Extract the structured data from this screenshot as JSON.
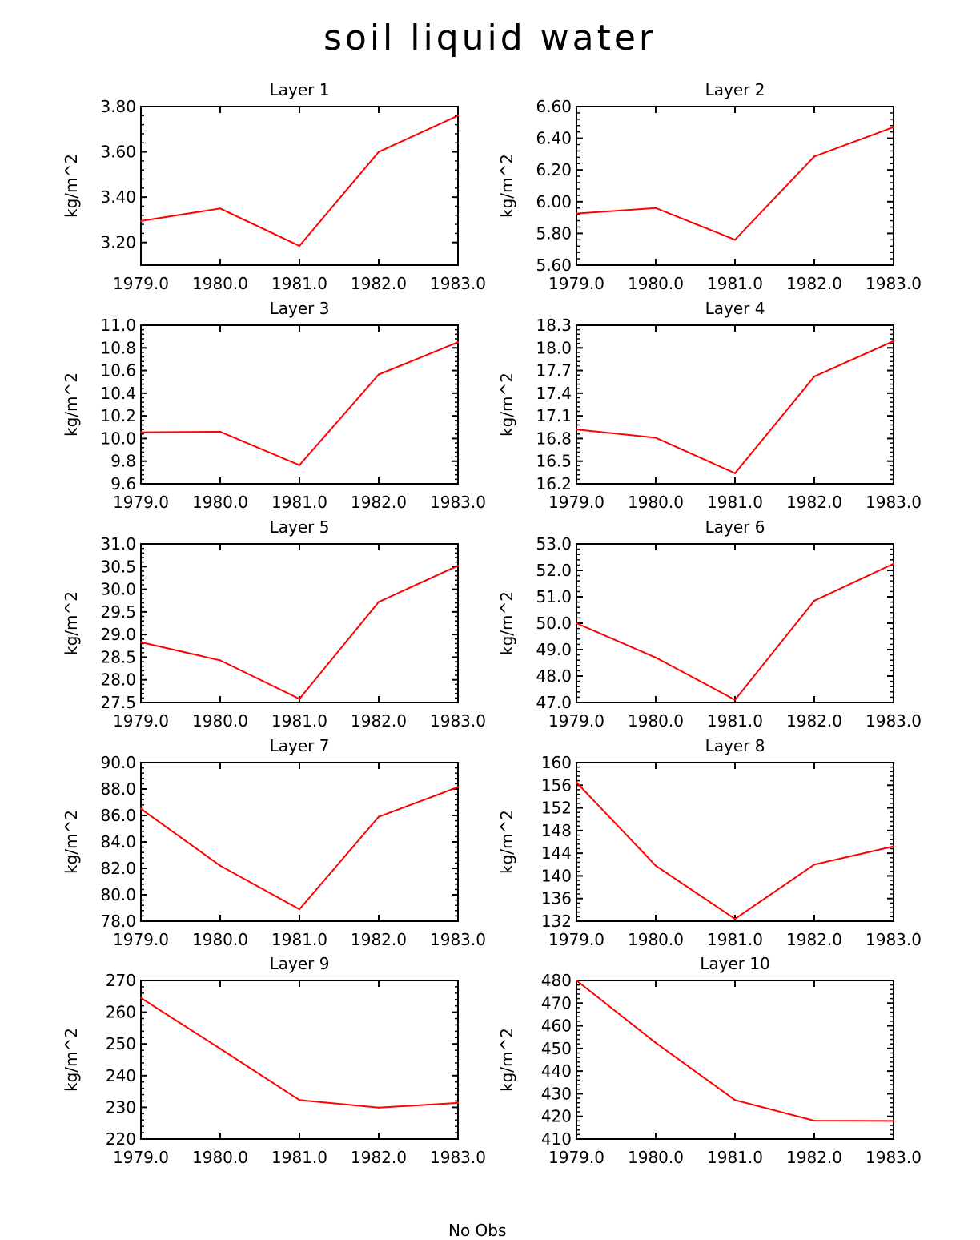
{
  "title": "soil liquid water",
  "footer": "No Obs",
  "chart_data": [
    {
      "type": "line",
      "title": "Layer 1",
      "xlabel": "",
      "ylabel": "kg/m^2",
      "x": [
        1979.0,
        1980.0,
        1981.0,
        1982.0,
        1983.0
      ],
      "values": [
        3.295,
        3.35,
        3.185,
        3.6,
        3.76
      ],
      "ylim": [
        3.1,
        3.8
      ],
      "xlim": [
        1979.0,
        1983.0
      ],
      "yticks": [
        "3.20",
        "3.40",
        "3.60",
        "3.80"
      ],
      "ytickvals": [
        3.2,
        3.4,
        3.6,
        3.8
      ],
      "xticks": [
        "1979.0",
        "1980.0",
        "1981.0",
        "1982.0",
        "1983.0"
      ],
      "color": "#ff0000"
    },
    {
      "type": "line",
      "title": "Layer 2",
      "xlabel": "",
      "ylabel": "kg/m^2",
      "x": [
        1979.0,
        1980.0,
        1981.0,
        1982.0,
        1983.0
      ],
      "values": [
        5.925,
        5.96,
        5.76,
        6.285,
        6.47
      ],
      "ylim": [
        5.6,
        6.6
      ],
      "xlim": [
        1979.0,
        1983.0
      ],
      "yticks": [
        "5.60",
        "5.80",
        "6.00",
        "6.20",
        "6.40",
        "6.60"
      ],
      "ytickvals": [
        5.6,
        5.8,
        6.0,
        6.2,
        6.4,
        6.6
      ],
      "xticks": [
        "1979.0",
        "1980.0",
        "1981.0",
        "1982.0",
        "1983.0"
      ],
      "color": "#ff0000"
    },
    {
      "type": "line",
      "title": "Layer 3",
      "xlabel": "",
      "ylabel": "kg/m^2",
      "x": [
        1979.0,
        1980.0,
        1981.0,
        1982.0,
        1983.0
      ],
      "values": [
        10.055,
        10.06,
        9.765,
        10.565,
        10.85
      ],
      "ylim": [
        9.6,
        11.0
      ],
      "xlim": [
        1979.0,
        1983.0
      ],
      "yticks": [
        "9.6",
        "9.8",
        "10.0",
        "10.2",
        "10.4",
        "10.6",
        "10.8",
        "11.0"
      ],
      "ytickvals": [
        9.6,
        9.8,
        10.0,
        10.2,
        10.4,
        10.6,
        10.8,
        11.0
      ],
      "xticks": [
        "1979.0",
        "1980.0",
        "1981.0",
        "1982.0",
        "1983.0"
      ],
      "color": "#ff0000"
    },
    {
      "type": "line",
      "title": "Layer 4",
      "xlabel": "",
      "ylabel": "kg/m^2",
      "x": [
        1979.0,
        1980.0,
        1981.0,
        1982.0,
        1983.0
      ],
      "values": [
        16.92,
        16.81,
        16.34,
        17.62,
        18.09
      ],
      "ylim": [
        16.2,
        18.3
      ],
      "xlim": [
        1979.0,
        1983.0
      ],
      "yticks": [
        "16.2",
        "16.5",
        "16.8",
        "17.1",
        "17.4",
        "17.7",
        "18.0",
        "18.3"
      ],
      "ytickvals": [
        16.2,
        16.5,
        16.8,
        17.1,
        17.4,
        17.7,
        18.0,
        18.3
      ],
      "xticks": [
        "1979.0",
        "1980.0",
        "1981.0",
        "1982.0",
        "1983.0"
      ],
      "color": "#ff0000"
    },
    {
      "type": "line",
      "title": "Layer 5",
      "xlabel": "",
      "ylabel": "kg/m^2",
      "x": [
        1979.0,
        1980.0,
        1981.0,
        1982.0,
        1983.0
      ],
      "values": [
        28.83,
        28.43,
        27.58,
        29.72,
        30.52
      ],
      "ylim": [
        27.5,
        31.0
      ],
      "xlim": [
        1979.0,
        1983.0
      ],
      "yticks": [
        "27.5",
        "28.0",
        "28.5",
        "29.0",
        "29.5",
        "30.0",
        "30.5",
        "31.0"
      ],
      "ytickvals": [
        27.5,
        28.0,
        28.5,
        29.0,
        29.5,
        30.0,
        30.5,
        31.0
      ],
      "xticks": [
        "1979.0",
        "1980.0",
        "1981.0",
        "1982.0",
        "1983.0"
      ],
      "color": "#ff0000"
    },
    {
      "type": "line",
      "title": "Layer 6",
      "xlabel": "",
      "ylabel": "kg/m^2",
      "x": [
        1979.0,
        1980.0,
        1981.0,
        1982.0,
        1983.0
      ],
      "values": [
        50.0,
        48.7,
        47.1,
        50.85,
        52.25
      ],
      "ylim": [
        47.0,
        53.0
      ],
      "xlim": [
        1979.0,
        1983.0
      ],
      "yticks": [
        "47.0",
        "48.0",
        "49.0",
        "50.0",
        "51.0",
        "52.0",
        "53.0"
      ],
      "ytickvals": [
        47.0,
        48.0,
        49.0,
        50.0,
        51.0,
        52.0,
        53.0
      ],
      "xticks": [
        "1979.0",
        "1980.0",
        "1981.0",
        "1982.0",
        "1983.0"
      ],
      "color": "#ff0000"
    },
    {
      "type": "line",
      "title": "Layer 7",
      "xlabel": "",
      "ylabel": "kg/m^2",
      "x": [
        1979.0,
        1980.0,
        1981.0,
        1982.0,
        1983.0
      ],
      "values": [
        86.5,
        82.2,
        78.9,
        85.9,
        88.15
      ],
      "ylim": [
        78.0,
        90.0
      ],
      "xlim": [
        1979.0,
        1983.0
      ],
      "yticks": [
        "78.0",
        "80.0",
        "82.0",
        "84.0",
        "86.0",
        "88.0",
        "90.0"
      ],
      "ytickvals": [
        78.0,
        80.0,
        82.0,
        84.0,
        86.0,
        88.0,
        90.0
      ],
      "xticks": [
        "1979.0",
        "1980.0",
        "1981.0",
        "1982.0",
        "1983.0"
      ],
      "color": "#ff0000"
    },
    {
      "type": "line",
      "title": "Layer 8",
      "xlabel": "",
      "ylabel": "kg/m^2",
      "x": [
        1979.0,
        1980.0,
        1981.0,
        1982.0,
        1983.0
      ],
      "values": [
        156.5,
        141.8,
        132.4,
        142.0,
        145.2
      ],
      "ylim": [
        132,
        160
      ],
      "xlim": [
        1979.0,
        1983.0
      ],
      "yticks": [
        "132",
        "136",
        "140",
        "144",
        "148",
        "152",
        "156",
        "160"
      ],
      "ytickvals": [
        132,
        136,
        140,
        144,
        148,
        152,
        156,
        160
      ],
      "xticks": [
        "1979.0",
        "1980.0",
        "1981.0",
        "1982.0",
        "1983.0"
      ],
      "color": "#ff0000"
    },
    {
      "type": "line",
      "title": "Layer 9",
      "xlabel": "",
      "ylabel": "kg/m^2",
      "x": [
        1979.0,
        1980.0,
        1981.0,
        1982.0,
        1983.0
      ],
      "values": [
        264.5,
        248.5,
        232.3,
        229.9,
        231.4
      ],
      "ylim": [
        220,
        270
      ],
      "xlim": [
        1979.0,
        1983.0
      ],
      "yticks": [
        "220",
        "230",
        "240",
        "250",
        "260",
        "270"
      ],
      "ytickvals": [
        220,
        230,
        240,
        250,
        260,
        270
      ],
      "xticks": [
        "1979.0",
        "1980.0",
        "1981.0",
        "1982.0",
        "1983.0"
      ],
      "color": "#ff0000"
    },
    {
      "type": "line",
      "title": "Layer 10",
      "xlabel": "",
      "ylabel": "kg/m^2",
      "x": [
        1979.0,
        1980.0,
        1981.0,
        1982.0,
        1983.0
      ],
      "values": [
        480,
        452.5,
        427.2,
        418.1,
        418.0
      ],
      "ylim": [
        410,
        480
      ],
      "xlim": [
        1979.0,
        1983.0
      ],
      "yticks": [
        "410",
        "420",
        "430",
        "440",
        "450",
        "460",
        "470",
        "480"
      ],
      "ytickvals": [
        410,
        420,
        430,
        440,
        450,
        460,
        470,
        480
      ],
      "xticks": [
        "1979.0",
        "1980.0",
        "1981.0",
        "1982.0",
        "1983.0"
      ],
      "color": "#ff0000"
    }
  ]
}
